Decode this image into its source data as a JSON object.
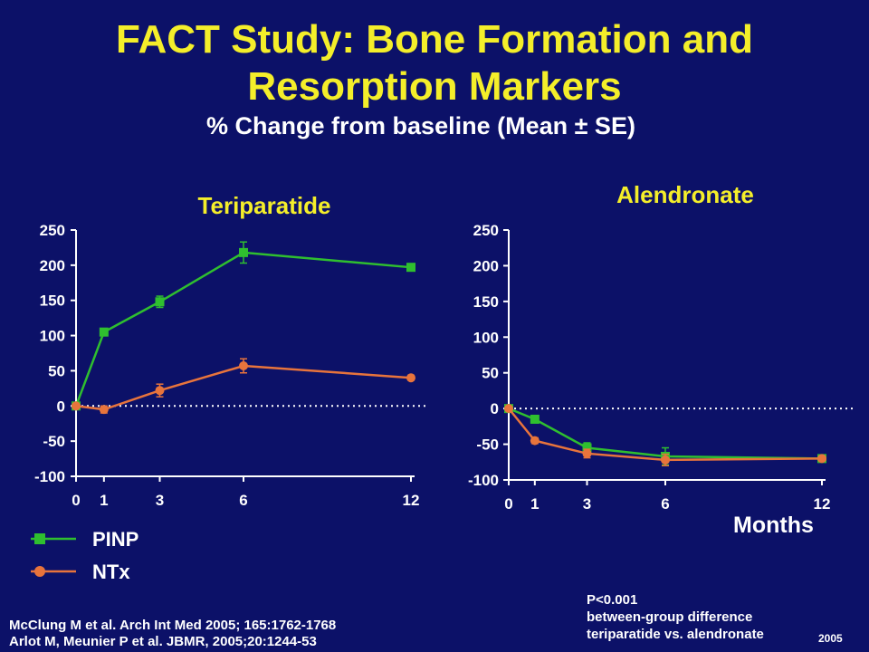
{
  "slide": {
    "title_line1": "FACT Study:  Bone Formation and",
    "title_line2": "Resorption Markers",
    "subtitle": "% Change from baseline (Mean ± SE)",
    "x_axis_unit": "Months",
    "legend": [
      {
        "label": "PINP",
        "color": "#2fbf2f",
        "marker": "square"
      },
      {
        "label": "NTx",
        "color": "#e8743c",
        "marker": "circle"
      }
    ],
    "references": [
      "McClung M et al. Arch Int Med 2005; 165:1762-1768",
      "Arlot M, Meunier P et al. JBMR, 2005;20:1244-53"
    ],
    "p_note": [
      "P<0.001",
      "between-group difference",
      "teriparatide vs. alendronate"
    ],
    "year": "2005"
  },
  "chart_data": [
    {
      "type": "line",
      "title": "Teriparatide",
      "x": [
        0,
        1,
        3,
        6,
        12
      ],
      "ylim": [
        -100,
        250
      ],
      "yticks": [
        250,
        200,
        150,
        100,
        50,
        0,
        -50,
        -100
      ],
      "baseline_dotted_at": 0,
      "series": [
        {
          "name": "PINP",
          "color": "#2fbf2f",
          "marker": "square",
          "values": [
            0,
            105,
            148,
            218,
            197
          ],
          "error": [
            0,
            5,
            8,
            15,
            3
          ]
        },
        {
          "name": "NTx",
          "color": "#e8743c",
          "marker": "circle",
          "values": [
            0,
            -5,
            22,
            57,
            40
          ],
          "error": [
            0,
            5,
            9,
            10,
            3
          ]
        }
      ]
    },
    {
      "type": "line",
      "title": "Alendronate",
      "x": [
        0,
        1,
        3,
        6,
        12
      ],
      "ylim": [
        -100,
        250
      ],
      "yticks": [
        250,
        200,
        150,
        100,
        50,
        0,
        -50,
        -100
      ],
      "baseline_dotted_at": 0,
      "series": [
        {
          "name": "PINP",
          "color": "#2fbf2f",
          "marker": "square",
          "values": [
            0,
            -15,
            -55,
            -67,
            -70
          ],
          "error": [
            0,
            4,
            7,
            12,
            3
          ]
        },
        {
          "name": "NTx",
          "color": "#e8743c",
          "marker": "circle",
          "values": [
            0,
            -45,
            -63,
            -72,
            -70
          ],
          "error": [
            0,
            4,
            6,
            8,
            3
          ]
        }
      ]
    }
  ]
}
